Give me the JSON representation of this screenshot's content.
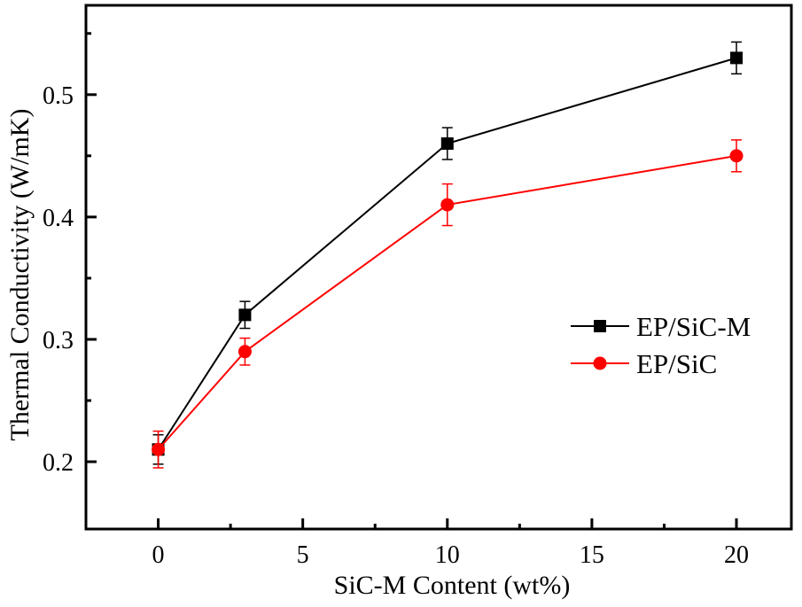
{
  "chart_data": {
    "type": "line",
    "title": "",
    "xlabel": "SiC-M Content (wt%)",
    "ylabel": "Thermal Conductivity (W/mK)",
    "xlim": [
      -2.5,
      21.9
    ],
    "ylim": [
      0.145,
      0.573
    ],
    "x_ticks": [
      0,
      5,
      10,
      15,
      20
    ],
    "x_tick_labels": [
      "0",
      "5",
      "10",
      "15",
      "20"
    ],
    "x_minor_ticks": [
      2.5,
      7.5,
      12.5,
      17.5
    ],
    "y_ticks": [
      0.2,
      0.3,
      0.4,
      0.5
    ],
    "y_tick_labels": [
      "0.2",
      "0.3",
      "0.4",
      "0.5"
    ],
    "y_minor_ticks": [
      0.25,
      0.35,
      0.45,
      0.55
    ],
    "grid": false,
    "legend_position": "center-right",
    "series": [
      {
        "name": "EP/SiC-M",
        "color": "#000000",
        "marker": "square",
        "x": [
          0,
          3,
          10,
          20
        ],
        "y": [
          0.21,
          0.32,
          0.46,
          0.53
        ],
        "error": [
          0.012,
          0.011,
          0.013,
          0.013
        ]
      },
      {
        "name": "EP/SiC",
        "color": "#ff0000",
        "marker": "circle",
        "x": [
          0,
          3,
          10,
          20
        ],
        "y": [
          0.21,
          0.29,
          0.41,
          0.45
        ],
        "error": [
          0.015,
          0.011,
          0.017,
          0.013
        ]
      }
    ]
  }
}
